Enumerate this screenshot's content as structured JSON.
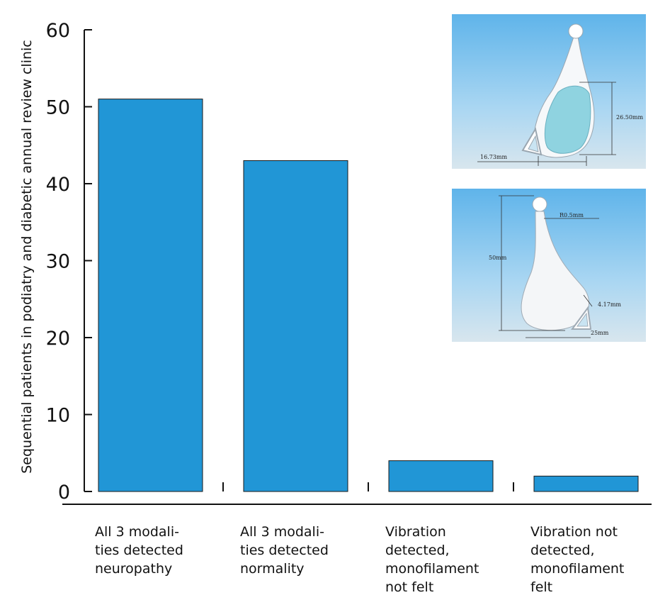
{
  "chart_data": {
    "type": "bar",
    "categories": [
      [
        "All 3 modali-",
        "ties detected",
        "neuropathy"
      ],
      [
        "All 3 modali-",
        "ties detected",
        "normality"
      ],
      [
        "Vibration",
        "detected,",
        "monofilament",
        "not felt"
      ],
      [
        "Vibration not",
        "detected,",
        "monofilament",
        "felt"
      ]
    ],
    "values": [
      51,
      43,
      4,
      2
    ],
    "ylabel": "Sequential patients in podiatry and diabetic annual review clinic",
    "xlabel": "",
    "title": "",
    "ylim": [
      0,
      60
    ],
    "yticks": [
      0,
      10,
      20,
      30,
      40,
      50,
      60
    ],
    "grid": false,
    "bar_color": "#2196d6"
  },
  "insets": {
    "top": {
      "dim_width": "16.73mm",
      "dim_height": "26.50mm"
    },
    "bottom": {
      "dim_radius": "R0.5mm",
      "dim_length": "50mm",
      "dim_thickness": "4.17mm",
      "dim_base": "25mm"
    }
  }
}
